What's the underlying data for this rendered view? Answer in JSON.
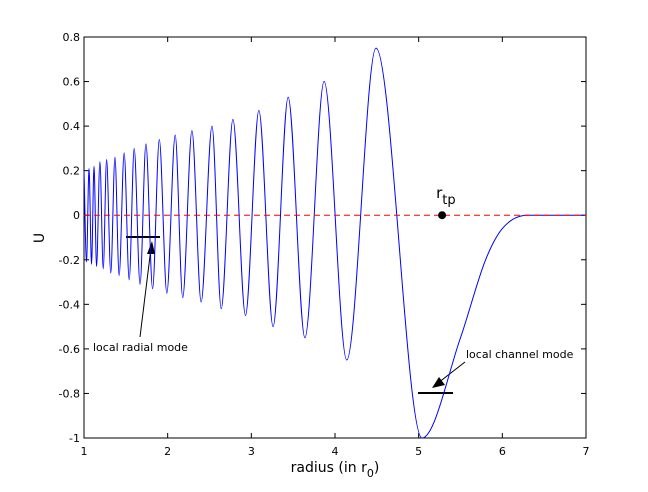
{
  "chart_data": {
    "type": "line",
    "xlabel": {
      "main": "radius (in r",
      "sub": "0",
      "end": ")"
    },
    "ylabel": "U",
    "xlim": [
      1,
      7
    ],
    "xticks": [
      1,
      2,
      3,
      4,
      5,
      6,
      7
    ],
    "ylim": [
      -1,
      0.8
    ],
    "yticks": [
      -1,
      -0.8,
      -0.6,
      -0.4,
      -0.2,
      0,
      0.2,
      0.4,
      0.6,
      0.8
    ],
    "series": [
      {
        "color": "#0000ff",
        "style": "solid",
        "x": [
          1.0,
          1.03,
          1.06,
          1.09,
          1.12,
          1.15,
          1.19,
          1.23,
          1.27,
          1.32,
          1.37,
          1.42,
          1.48,
          1.54,
          1.6,
          1.67,
          1.74,
          1.82,
          1.9,
          1.99,
          2.09,
          2.18,
          2.29,
          2.4,
          2.53,
          2.64,
          2.78,
          2.93,
          3.09,
          3.26,
          3.44,
          3.64,
          3.87,
          4.14,
          4.49,
          5.04,
          5.5,
          5.8,
          6.0,
          6.3,
          7.0
        ],
        "values": [
          0.2,
          -0.21,
          0.21,
          -0.22,
          0.22,
          -0.23,
          0.24,
          -0.24,
          0.25,
          -0.26,
          0.26,
          -0.27,
          0.28,
          -0.29,
          0.3,
          -0.31,
          0.32,
          -0.33,
          0.34,
          -0.35,
          0.36,
          -0.37,
          0.38,
          -0.39,
          0.4,
          -0.42,
          0.43,
          -0.45,
          0.47,
          -0.5,
          0.53,
          -0.55,
          0.6,
          -0.65,
          0.75,
          -1.0,
          -0.55,
          -0.2,
          -0.06,
          0,
          0
        ]
      },
      {
        "color": "#ff0000",
        "style": "dashed",
        "x": [
          1,
          7
        ],
        "values": [
          0,
          0
        ]
      }
    ],
    "point": {
      "x": 5.28,
      "y": 0,
      "label": "r",
      "label_sub": "tp"
    },
    "annotations": [
      "local radial mode",
      "local channel mode"
    ]
  }
}
